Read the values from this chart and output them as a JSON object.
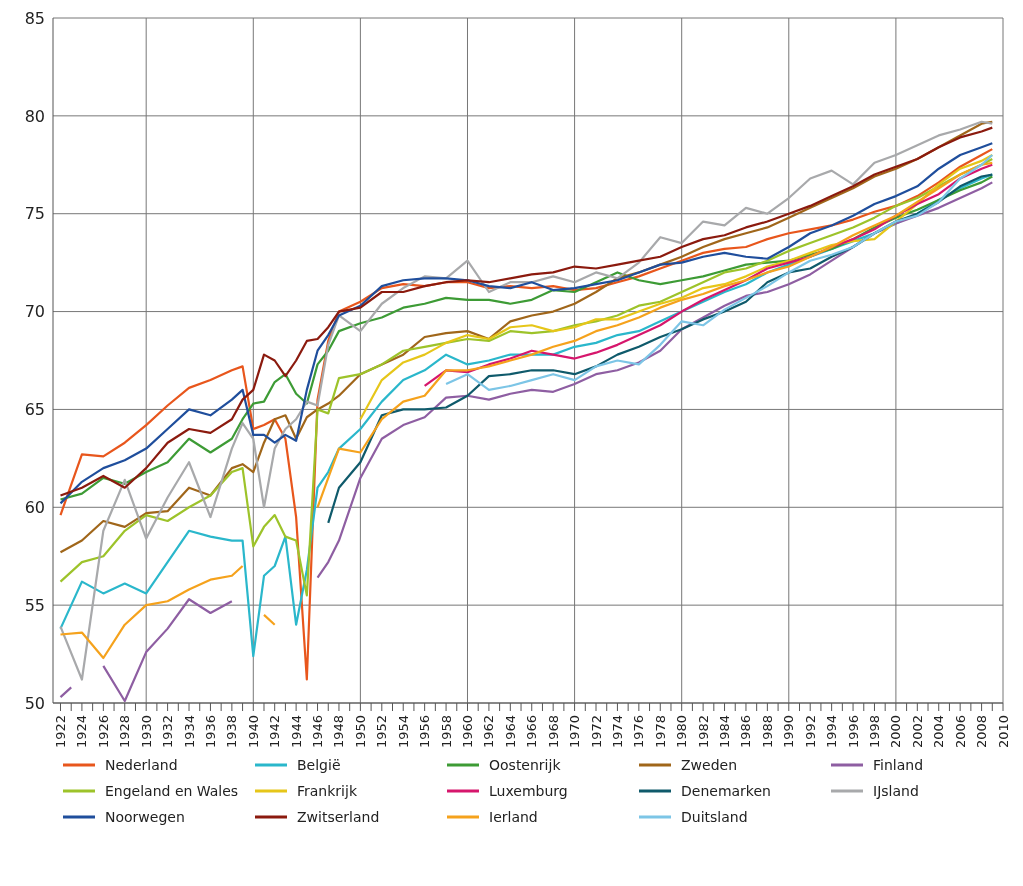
{
  "chart_data": {
    "type": "line",
    "x": [
      1922,
      1924,
      1926,
      1928,
      1930,
      1932,
      1934,
      1936,
      1938,
      1939,
      1940,
      1941,
      1942,
      1943,
      1944,
      1945,
      1946,
      1947,
      1948,
      1950,
      1952,
      1954,
      1956,
      1958,
      1960,
      1962,
      1964,
      1966,
      1968,
      1970,
      1972,
      1974,
      1976,
      1978,
      1980,
      1982,
      1984,
      1986,
      1988,
      1990,
      1992,
      1994,
      1996,
      1998,
      2000,
      2002,
      2004,
      2006,
      2008,
      2009
    ],
    "series": [
      {
        "name": "Nederland",
        "color": "#e8561c",
        "values": [
          59.6,
          62.7,
          62.6,
          63.3,
          64.2,
          65.2,
          66.1,
          66.5,
          67.0,
          67.2,
          64.0,
          64.2,
          64.5,
          63.5,
          59.5,
          51.2,
          65.5,
          68.5,
          70.0,
          70.5,
          71.2,
          71.4,
          71.3,
          71.5,
          71.5,
          71.2,
          71.3,
          71.2,
          71.3,
          71.1,
          71.2,
          71.5,
          71.8,
          72.2,
          72.6,
          73.0,
          73.2,
          73.3,
          73.7,
          74.0,
          74.2,
          74.4,
          74.7,
          75.1,
          75.4,
          75.9,
          76.6,
          77.4,
          78.0,
          78.3
        ]
      },
      {
        "name": "België",
        "color": "#2ab7cb",
        "values": [
          53.8,
          56.2,
          55.6,
          56.1,
          55.6,
          57.2,
          58.8,
          58.5,
          58.3,
          58.3,
          52.4,
          56.5,
          57.0,
          58.5,
          54.0,
          56.8,
          61.0,
          61.8,
          63.0,
          64.0,
          65.4,
          66.5,
          67.0,
          67.8,
          67.3,
          67.5,
          67.8,
          67.8,
          67.8,
          68.2,
          68.4,
          68.8,
          69.0,
          69.5,
          70.0,
          70.5,
          71.0,
          71.4,
          72.0,
          72.4,
          72.8,
          73.2,
          73.6,
          74.0,
          74.5,
          75.0,
          75.7,
          76.3,
          76.8,
          77.0
        ]
      },
      {
        "name": "Oostenrijk",
        "color": "#3d9b35",
        "values": [
          60.4,
          60.7,
          61.5,
          61.2,
          61.8,
          62.3,
          63.5,
          62.8,
          63.5,
          64.5,
          65.3,
          65.4,
          66.4,
          66.8,
          65.8,
          65.3,
          67.3,
          68.0,
          69.0,
          69.4,
          69.7,
          70.2,
          70.4,
          70.7,
          70.6,
          70.6,
          70.4,
          70.6,
          71.1,
          71.0,
          71.5,
          72.0,
          71.6,
          71.4,
          71.6,
          71.8,
          72.1,
          72.4,
          72.5,
          72.6,
          72.9,
          73.2,
          73.7,
          74.3,
          74.8,
          75.2,
          75.7,
          76.2,
          76.6,
          76.9
        ]
      },
      {
        "name": "Zweden",
        "color": "#a0661a",
        "values": [
          57.7,
          58.3,
          59.3,
          59.0,
          59.7,
          59.8,
          61.0,
          60.6,
          62.0,
          62.2,
          61.8,
          63.3,
          64.5,
          64.7,
          63.5,
          64.6,
          65.0,
          65.3,
          65.7,
          66.8,
          67.3,
          67.8,
          68.7,
          68.9,
          69.0,
          68.6,
          69.5,
          69.8,
          70.0,
          70.4,
          71.0,
          71.7,
          72.0,
          72.4,
          72.8,
          73.3,
          73.7,
          74.0,
          74.3,
          74.8,
          75.3,
          75.8,
          76.3,
          76.9,
          77.3,
          77.8,
          78.4,
          79.0,
          79.6,
          79.7
        ]
      },
      {
        "name": "Finland",
        "color": "#8e5ea2",
        "x": [
          1922,
          1923,
          1924,
          1926,
          1928,
          1930,
          1932,
          1934,
          1936,
          1938,
          1939,
          1940,
          1941,
          1942,
          1943,
          1944,
          1945,
          1946,
          1947,
          1948,
          1950,
          1952,
          1954,
          1956,
          1958,
          1960,
          1962,
          1964,
          1966,
          1968,
          1970,
          1972,
          1974,
          1976,
          1978,
          1980,
          1982,
          1984,
          1986,
          1988,
          1990,
          1992,
          1994,
          1996,
          1998,
          2000,
          2002,
          2004,
          2006,
          2008,
          2009
        ],
        "values": [
          50.3,
          50.8,
          null,
          51.9,
          50.1,
          52.6,
          53.8,
          55.3,
          54.6,
          55.2,
          null,
          null,
          null,
          null,
          null,
          null,
          null,
          56.4,
          57.2,
          58.3,
          61.5,
          63.5,
          64.2,
          64.6,
          65.6,
          65.7,
          65.5,
          65.8,
          66.0,
          65.9,
          66.3,
          66.8,
          67.0,
          67.4,
          68.0,
          69.1,
          69.7,
          70.3,
          70.8,
          71.0,
          71.4,
          71.9,
          72.6,
          73.3,
          74.0,
          74.5,
          74.9,
          75.3,
          75.8,
          76.3,
          76.6
        ]
      },
      {
        "name": "Engeland en Wales",
        "color": "#9dc32a",
        "values": [
          56.2,
          57.2,
          57.5,
          58.8,
          59.6,
          59.3,
          60.0,
          60.6,
          61.8,
          62.0,
          58.0,
          59.0,
          59.6,
          58.5,
          58.3,
          55.5,
          65.0,
          64.8,
          66.6,
          66.8,
          67.3,
          68.0,
          68.2,
          68.4,
          68.6,
          68.5,
          69.0,
          68.9,
          69.0,
          69.3,
          69.5,
          69.8,
          70.3,
          70.5,
          71.0,
          71.5,
          72.0,
          72.2,
          72.6,
          73.1,
          73.5,
          73.9,
          74.3,
          74.8,
          75.4,
          75.8,
          76.4,
          77.0,
          77.5,
          77.8
        ]
      },
      {
        "name": "Frankrijk",
        "color": "#e6c619",
        "values": [
          null,
          null,
          null,
          null,
          null,
          null,
          null,
          null,
          null,
          null,
          null,
          null,
          null,
          null,
          null,
          null,
          null,
          null,
          null,
          64.5,
          66.5,
          67.4,
          67.8,
          68.4,
          68.8,
          68.6,
          69.2,
          69.3,
          69.0,
          69.2,
          69.6,
          69.6,
          70.0,
          70.4,
          70.7,
          71.2,
          71.4,
          71.8,
          72.3,
          72.6,
          73.0,
          73.4,
          73.6,
          73.7,
          74.6,
          75.5,
          76.5,
          77.3,
          77.7,
          78.0
        ]
      },
      {
        "name": "Luxemburg",
        "color": "#d6166c",
        "values": [
          null,
          null,
          null,
          null,
          null,
          null,
          null,
          null,
          null,
          null,
          null,
          null,
          null,
          null,
          null,
          null,
          null,
          null,
          null,
          null,
          null,
          null,
          66.2,
          67.0,
          66.9,
          67.3,
          67.6,
          68.0,
          67.8,
          67.6,
          67.9,
          68.3,
          68.8,
          69.3,
          70.0,
          70.6,
          71.1,
          71.6,
          72.2,
          72.5,
          72.8,
          73.3,
          73.7,
          74.2,
          74.9,
          75.5,
          76.0,
          76.8,
          77.3,
          77.5
        ]
      },
      {
        "name": "Denemarken",
        "color": "#0f5a6b",
        "values": [
          null,
          null,
          null,
          null,
          null,
          null,
          null,
          null,
          null,
          null,
          null,
          null,
          null,
          null,
          null,
          null,
          null,
          59.2,
          61.0,
          62.3,
          64.7,
          65.0,
          65.0,
          65.1,
          65.7,
          66.7,
          66.8,
          67.0,
          67.0,
          66.8,
          67.2,
          67.8,
          68.2,
          68.7,
          69.1,
          69.6,
          70.0,
          70.5,
          71.5,
          72.0,
          72.2,
          72.8,
          73.3,
          74.0,
          74.6,
          75.0,
          75.6,
          76.4,
          76.9,
          77.0
        ]
      },
      {
        "name": "IJsland",
        "color": "#a8a9ab",
        "values": [
          53.9,
          51.2,
          58.8,
          61.4,
          58.4,
          60.5,
          62.3,
          59.5,
          63.0,
          64.3,
          63.5,
          60.0,
          63.0,
          64.0,
          64.5,
          65.4,
          65.2,
          68.3,
          69.8,
          69.0,
          70.4,
          71.2,
          71.8,
          71.7,
          72.6,
          71.0,
          71.5,
          71.5,
          71.8,
          71.5,
          72.0,
          71.7,
          72.5,
          73.8,
          73.5,
          74.6,
          74.4,
          75.3,
          75.0,
          75.8,
          76.8,
          77.2,
          76.5,
          77.6,
          78.0,
          78.5,
          79.0,
          79.3,
          79.7,
          79.6
        ]
      },
      {
        "name": "Noorwegen",
        "color": "#1f4e9c",
        "values": [
          60.2,
          61.3,
          62.0,
          62.4,
          63.0,
          64.0,
          65.0,
          64.7,
          65.5,
          66.0,
          63.7,
          63.7,
          63.3,
          63.7,
          63.4,
          66.0,
          68.0,
          68.8,
          69.8,
          70.3,
          71.3,
          71.6,
          71.7,
          71.7,
          71.6,
          71.3,
          71.2,
          71.5,
          71.1,
          71.2,
          71.4,
          71.6,
          72.0,
          72.4,
          72.5,
          72.8,
          73.0,
          72.8,
          72.7,
          73.3,
          74.0,
          74.4,
          74.9,
          75.5,
          75.9,
          76.4,
          77.3,
          78.0,
          78.4,
          78.6
        ]
      },
      {
        "name": "Zwitserland",
        "color": "#8b1a0e",
        "values": [
          60.6,
          61.0,
          61.6,
          61.0,
          62.0,
          63.3,
          64.0,
          63.8,
          64.5,
          65.5,
          66.0,
          67.8,
          67.5,
          66.7,
          67.5,
          68.5,
          68.6,
          69.2,
          70.0,
          70.2,
          71.0,
          71.0,
          71.3,
          71.5,
          71.6,
          71.5,
          71.7,
          71.9,
          72.0,
          72.3,
          72.2,
          72.4,
          72.6,
          72.8,
          73.3,
          73.7,
          73.9,
          74.3,
          74.6,
          75.0,
          75.4,
          75.9,
          76.4,
          77.0,
          77.4,
          77.8,
          78.4,
          78.9,
          79.2,
          79.4
        ]
      },
      {
        "name": "Ierland",
        "color": "#f5a21c",
        "values": [
          53.5,
          53.6,
          52.3,
          54.0,
          55.0,
          55.2,
          55.8,
          56.3,
          56.5,
          57.0,
          null,
          54.5,
          54.0,
          null,
          null,
          null,
          60.0,
          61.5,
          63.0,
          62.8,
          64.5,
          65.4,
          65.7,
          67.0,
          67.0,
          67.2,
          67.5,
          67.8,
          68.2,
          68.5,
          69.0,
          69.3,
          69.7,
          70.2,
          70.6,
          70.9,
          71.3,
          71.6,
          72.0,
          72.3,
          72.8,
          73.3,
          73.9,
          74.4,
          74.9,
          75.6,
          76.3,
          77.0,
          77.5,
          77.6
        ]
      },
      {
        "name": "Duitsland",
        "color": "#7cc5e6",
        "values": [
          null,
          null,
          null,
          null,
          null,
          null,
          null,
          null,
          null,
          null,
          null,
          null,
          null,
          null,
          null,
          null,
          null,
          null,
          null,
          null,
          null,
          null,
          null,
          66.3,
          66.8,
          66.0,
          66.2,
          66.5,
          66.8,
          66.5,
          67.2,
          67.5,
          67.3,
          68.3,
          69.5,
          69.3,
          70.1,
          70.7,
          71.3,
          72.0,
          72.6,
          72.9,
          73.3,
          74.0,
          74.6,
          74.9,
          75.6,
          76.8,
          77.5,
          78.0
        ]
      }
    ],
    "xlim": [
      1921.3,
      2010
    ],
    "xticks": [
      1922,
      {
        "value": 1923,
        "label": null
      },
      1924,
      {
        "value": 1925,
        "label": null
      },
      1926,
      {
        "value": 1927,
        "label": null
      },
      1928,
      {
        "value": 1929,
        "label": null
      },
      1930,
      {
        "value": 1931,
        "label": null
      },
      1932,
      {
        "value": 1933,
        "label": null
      },
      1934,
      {
        "value": 1935,
        "label": null
      },
      1936,
      {
        "value": 1937,
        "label": null
      },
      1938,
      {
        "value": 1939,
        "label": null
      },
      1940,
      {
        "value": 1941,
        "label": null
      },
      1942,
      {
        "value": 1943,
        "label": null
      },
      1944,
      {
        "value": 1945,
        "label": null
      },
      1946,
      {
        "value": 1947,
        "label": null
      },
      1948,
      {
        "value": 1949,
        "label": null
      },
      1950,
      {
        "value": 1951,
        "label": null
      },
      1952,
      {
        "value": 1953,
        "label": null
      },
      1954,
      {
        "value": 1955,
        "label": null
      },
      1956,
      {
        "value": 1957,
        "label": null
      },
      1958,
      {
        "value": 1959,
        "label": null
      },
      1960,
      {
        "value": 1961,
        "label": null
      },
      1962,
      {
        "value": 1963,
        "label": null
      },
      1964,
      {
        "value": 1965,
        "label": null
      },
      1966,
      {
        "value": 1967,
        "label": null
      },
      1968,
      {
        "value": 1969,
        "label": null
      },
      1970,
      {
        "value": 1971,
        "label": null
      },
      1972,
      {
        "value": 1973,
        "label": null
      },
      1974,
      {
        "value": 1975,
        "label": null
      },
      1976,
      {
        "value": 1977,
        "label": null
      },
      1978,
      {
        "value": 1979,
        "label": null
      },
      1980,
      {
        "value": 1981,
        "label": null
      },
      1982,
      {
        "value": 1983,
        "label": null
      },
      1984,
      {
        "value": 1985,
        "label": null
      },
      1986,
      {
        "value": 1987,
        "label": null
      },
      1988,
      {
        "value": 1989,
        "label": null
      },
      1990,
      {
        "value": 1991,
        "label": null
      },
      1992,
      {
        "value": 1993,
        "label": null
      },
      1994,
      {
        "value": 1995,
        "label": null
      },
      1996,
      {
        "value": 1997,
        "label": null
      },
      1998,
      {
        "value": 1999,
        "label": null
      },
      2000,
      {
        "value": 2001,
        "label": null
      },
      2002,
      {
        "value": 2003,
        "label": null
      },
      2004,
      {
        "value": 2005,
        "label": null
      },
      2006,
      {
        "value": 2007,
        "label": null
      },
      2008,
      {
        "value": 2009,
        "label": null
      },
      2010
    ],
    "ylim": [
      50,
      85
    ],
    "yticks": [
      50,
      55,
      60,
      65,
      70,
      75,
      80,
      85
    ],
    "grid": true,
    "legend": "bottom",
    "marker": "none",
    "line_style": "solid"
  }
}
